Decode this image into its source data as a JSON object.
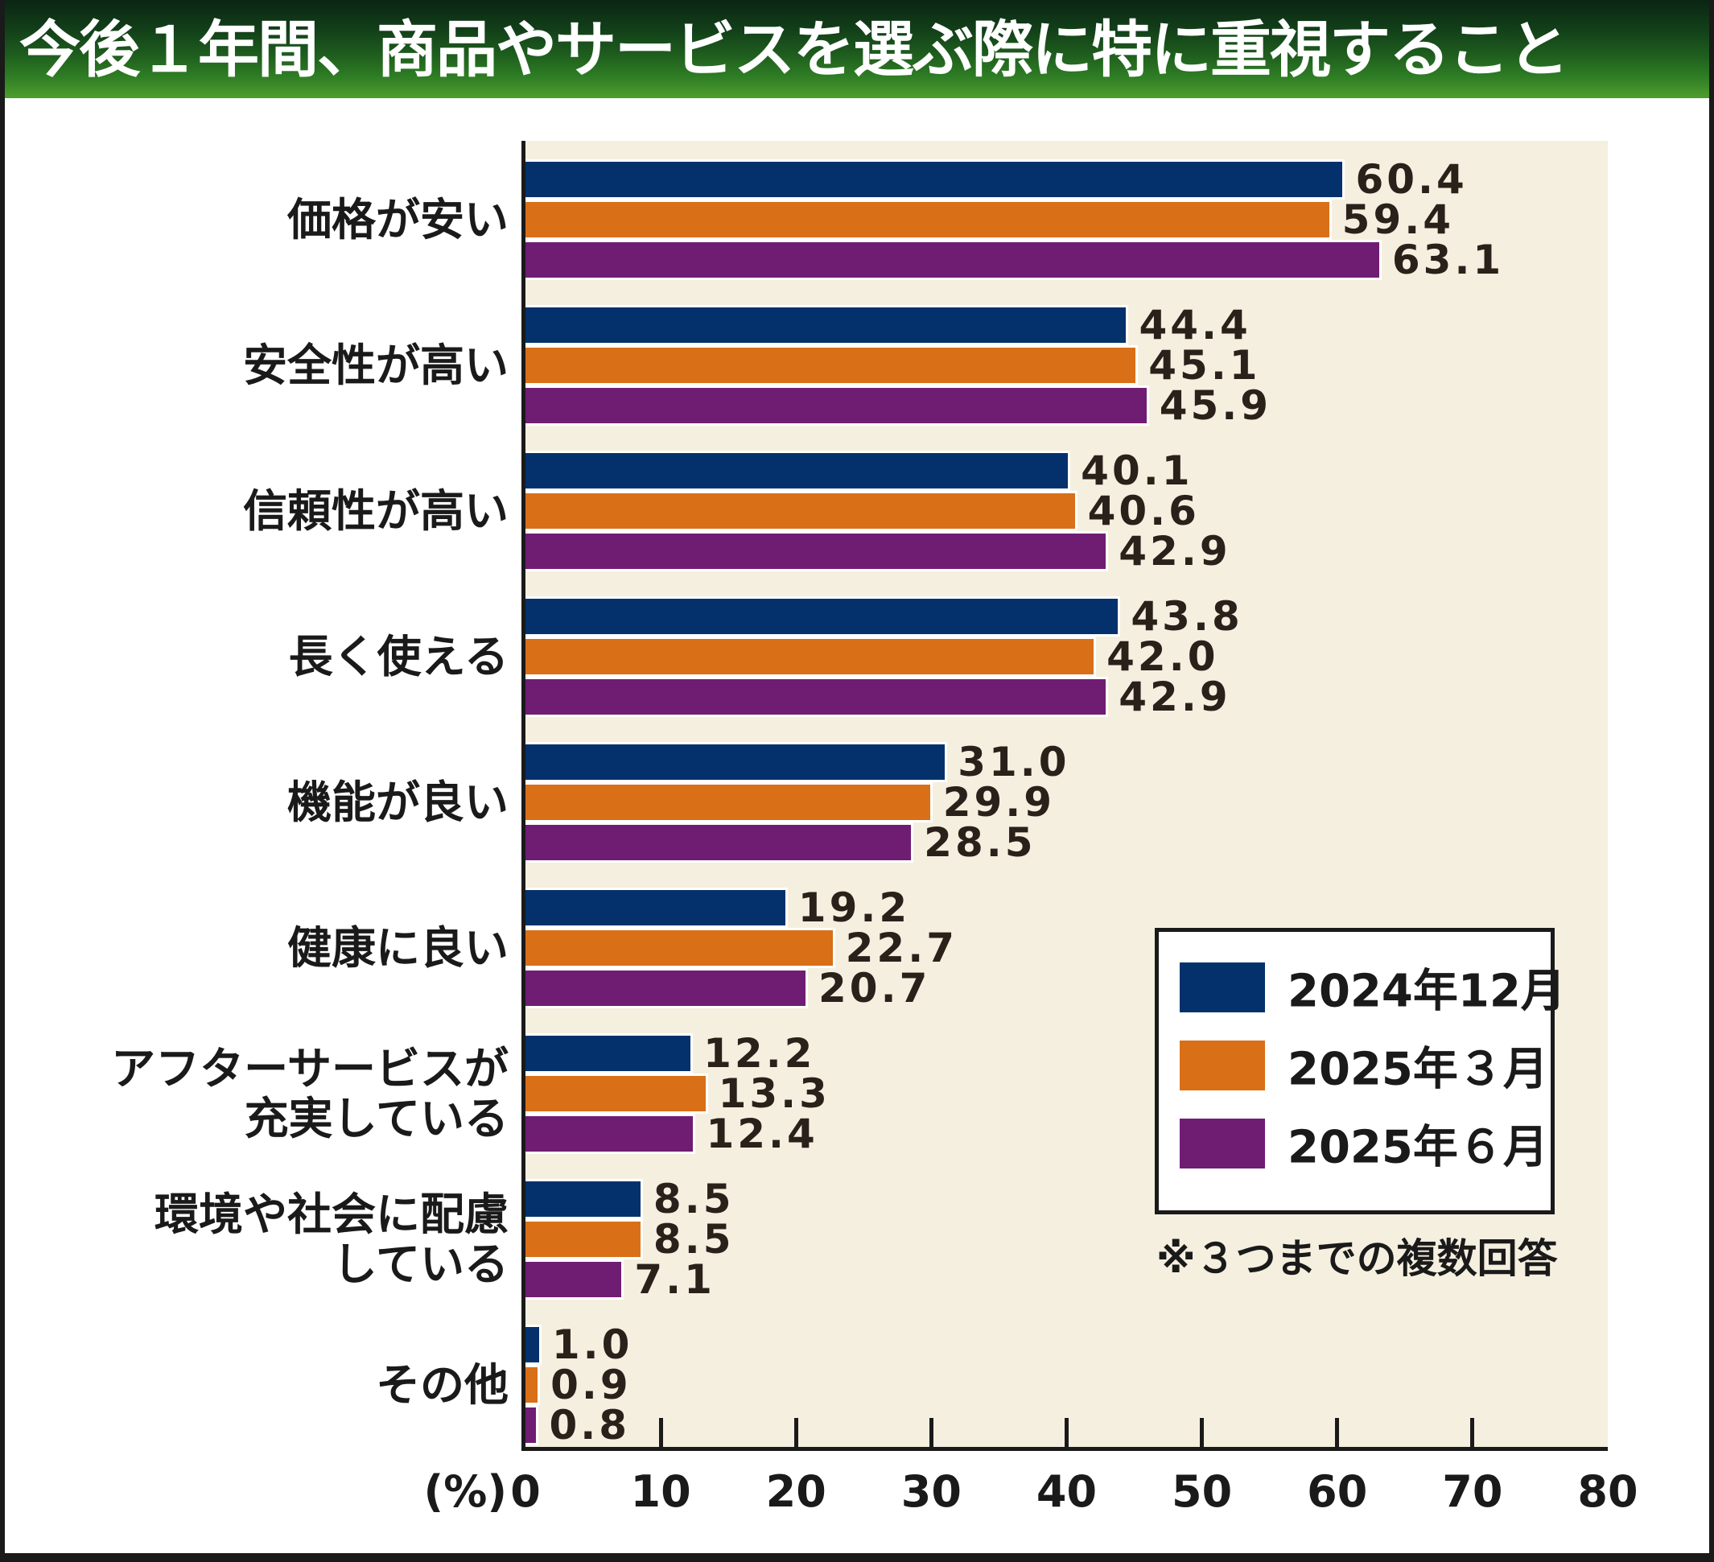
{
  "page": {
    "title": "今後１年間、商品やサービスを選ぶ際に特に重視すること"
  },
  "chart_data": {
    "type": "bar",
    "orientation": "horizontal",
    "title": "今後１年間、商品やサービスを選ぶ際に特に重視すること",
    "note": "※３つまでの複数回答",
    "xlabel": "(%)",
    "xlim": [
      0,
      80
    ],
    "x_ticks": [
      0,
      10,
      20,
      30,
      40,
      50,
      60,
      70,
      80
    ],
    "grid": false,
    "legend_position": "inside-lower-right",
    "colors": {
      "plot_background": "#f5efdf",
      "axis": "#1a1a1a",
      "title_band_top": "#0b2513",
      "title_band_bottom": "#4f9e2e",
      "title_text": "#ffffff",
      "value_text": "#29211a"
    },
    "categories": [
      "価格が安い",
      "安全性が高い",
      "信頼性が高い",
      "長く使える",
      "機能が良い",
      "健康に良い",
      "アフターサービスが充実している",
      "環境や社会に配慮している",
      "その他"
    ],
    "category_label_lines": [
      [
        "価格が安い"
      ],
      [
        "安全性が高い"
      ],
      [
        "信頼性が高い"
      ],
      [
        "長く使える"
      ],
      [
        "機能が良い"
      ],
      [
        "健康に良い"
      ],
      [
        "アフターサービスが",
        "充実している"
      ],
      [
        "環境や社会に配慮",
        "している"
      ],
      [
        "その他"
      ]
    ],
    "series": [
      {
        "name": "2024年12月",
        "color": "#04316b",
        "values": [
          60.4,
          44.4,
          40.1,
          43.8,
          31.0,
          19.2,
          12.2,
          8.5,
          1.0
        ],
        "labels": [
          "60.4",
          "44.4",
          "40.1",
          "43.8",
          "31.0",
          "19.2",
          "12.2",
          "8.5",
          "1.0"
        ]
      },
      {
        "name": "2025年３月",
        "color": "#d96f17",
        "values": [
          59.4,
          45.1,
          40.6,
          42.0,
          29.9,
          22.7,
          13.3,
          8.5,
          0.9
        ],
        "labels": [
          "59.4",
          "45.1",
          "40.6",
          "42.0",
          "29.9",
          "22.7",
          "13.3",
          "8.5",
          "0.9"
        ]
      },
      {
        "name": "2025年６月",
        "color": "#6f1d73",
        "values": [
          63.1,
          45.9,
          42.9,
          42.9,
          28.5,
          20.7,
          12.4,
          7.1,
          0.8
        ],
        "labels": [
          "63.1",
          "45.9",
          "42.9",
          "42.9",
          "28.5",
          "20.7",
          "12.4",
          "7.1",
          "0.8"
        ]
      }
    ]
  }
}
